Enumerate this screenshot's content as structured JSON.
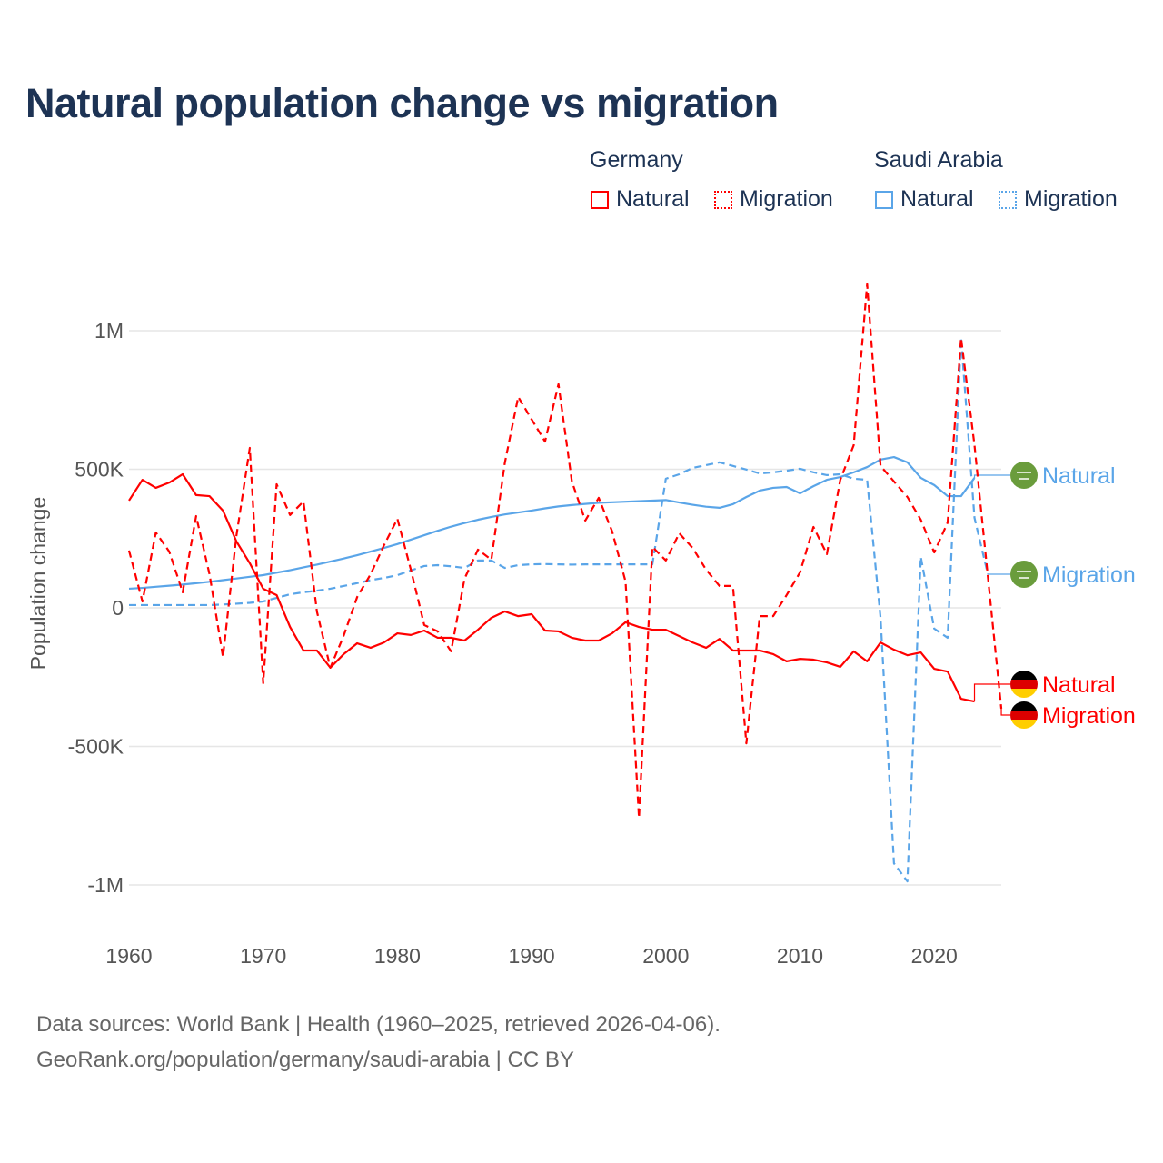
{
  "title": "Natural population change vs migration",
  "legend": {
    "groups": [
      {
        "name": "Germany",
        "items": [
          "Natural",
          "Migration"
        ],
        "color": "#ff0000"
      },
      {
        "name": "Saudi Arabia",
        "items": [
          "Natural",
          "Migration"
        ],
        "color": "#5aa5e8"
      }
    ]
  },
  "source": {
    "line1": "Data sources: World Bank | Health (1960–2025, retrieved 2026-04-06).",
    "line2": "GeoRank.org/population/germany/saudi-arabia | CC BY"
  },
  "chart_data": {
    "type": "line",
    "title": "Natural population change vs migration",
    "xlabel": "",
    "ylabel": "Population change",
    "xlim": [
      1960,
      2025
    ],
    "ylim": [
      -1000000,
      1000000
    ],
    "x_ticks": [
      1960,
      1970,
      1980,
      1990,
      2000,
      2010,
      2020
    ],
    "x_tick_labels": [
      "1960",
      "1970",
      "1980",
      "1990",
      "2000",
      "2010",
      "2020"
    ],
    "y_ticks": [
      1000000,
      500000,
      0,
      -500000,
      -1000000
    ],
    "y_tick_labels": [
      "1M",
      "500K",
      "0",
      "-500K",
      "-1M"
    ],
    "grid": true,
    "series": [
      {
        "name": "Germany Natural",
        "end_label": "Natural",
        "country": "Germany",
        "color": "#ff0000",
        "dash": "solid",
        "start_year": 1960,
        "values": [
          387000,
          462000,
          433000,
          452000,
          482000,
          407000,
          403000,
          351000,
          240000,
          161000,
          69000,
          46000,
          -69000,
          -154000,
          -154000,
          -216000,
          -167000,
          -128000,
          -144000,
          -125000,
          -92000,
          -98000,
          -82000,
          -108000,
          -108000,
          -118000,
          -79000,
          -36000,
          -13000,
          -30000,
          -23000,
          -82000,
          -85000,
          -108000,
          -118000,
          -118000,
          -92000,
          -52000,
          -69000,
          -79000,
          -79000,
          -102000,
          -125000,
          -144000,
          -112000,
          -154000,
          -154000,
          -154000,
          -167000,
          -193000,
          -184000,
          -187000,
          -197000,
          -213000,
          -157000,
          -193000,
          -125000,
          -151000,
          -171000,
          -161000,
          -220000,
          -230000,
          -328000,
          -338000
        ]
      },
      {
        "name": "Germany Migration",
        "end_label": "Migration",
        "country": "Germany",
        "color": "#ff0000",
        "dash": "dashed",
        "start_year": 1960,
        "values": [
          207000,
          23000,
          272000,
          203000,
          56000,
          331000,
          121000,
          -177000,
          259000,
          577000,
          -272000,
          446000,
          335000,
          384000,
          -13000,
          -216000,
          -100000,
          39000,
          121000,
          226000,
          321000,
          138000,
          -62000,
          -85000,
          -157000,
          105000,
          210000,
          174000,
          522000,
          761000,
          680000,
          600000,
          807000,
          456000,
          315000,
          397000,
          276000,
          95000,
          -758000,
          220000,
          171000,
          269000,
          216000,
          138000,
          79000,
          79000,
          -489000,
          -30000,
          -30000,
          46000,
          128000,
          292000,
          194000,
          462000,
          587000,
          1168000,
          512000,
          456000,
          400000,
          318000,
          200000,
          308000,
          974000,
          587000,
          112000,
          -364000
        ]
      },
      {
        "name": "Saudi Arabia Natural",
        "end_label": "Natural",
        "country": "Saudi Arabia",
        "color": "#5aa5e8",
        "dash": "solid",
        "start_year": 1960,
        "values": [
          69000,
          72000,
          76000,
          80000,
          84000,
          89000,
          94000,
          100000,
          106000,
          112000,
          118000,
          127000,
          136000,
          146000,
          156000,
          167000,
          178000,
          190000,
          203000,
          216000,
          230000,
          246000,
          262000,
          278000,
          293000,
          306000,
          318000,
          328000,
          337000,
          344000,
          351000,
          359000,
          366000,
          371000,
          375000,
          379000,
          381000,
          383000,
          385000,
          387000,
          389000,
          380000,
          372000,
          365000,
          361000,
          374000,
          400000,
          423000,
          433000,
          436000,
          413000,
          439000,
          462000,
          472000,
          489000,
          508000,
          535000,
          544000,
          525000,
          469000,
          443000,
          403000,
          403000,
          469000
        ]
      },
      {
        "name": "Saudi Arabia Migration",
        "end_label": "Migration",
        "country": "Saudi Arabia",
        "color": "#5aa5e8",
        "dash": "dashed",
        "start_year": 1960,
        "values": [
          10000,
          10000,
          10000,
          10000,
          10000,
          10000,
          10000,
          12000,
          15000,
          18000,
          23000,
          36000,
          49000,
          56000,
          62000,
          69000,
          79000,
          89000,
          100000,
          108000,
          118000,
          135000,
          151000,
          154000,
          150000,
          144000,
          171000,
          171000,
          144000,
          154000,
          157000,
          158000,
          157000,
          156000,
          157000,
          157000,
          157000,
          157000,
          157000,
          157000,
          466000,
          482000,
          505000,
          515000,
          525000,
          512000,
          499000,
          485000,
          489000,
          495000,
          502000,
          489000,
          479000,
          482000,
          466000,
          462000,
          -36000,
          -922000,
          -987000,
          184000,
          -75000,
          -108000,
          974000,
          325000,
          121000
        ]
      }
    ]
  }
}
